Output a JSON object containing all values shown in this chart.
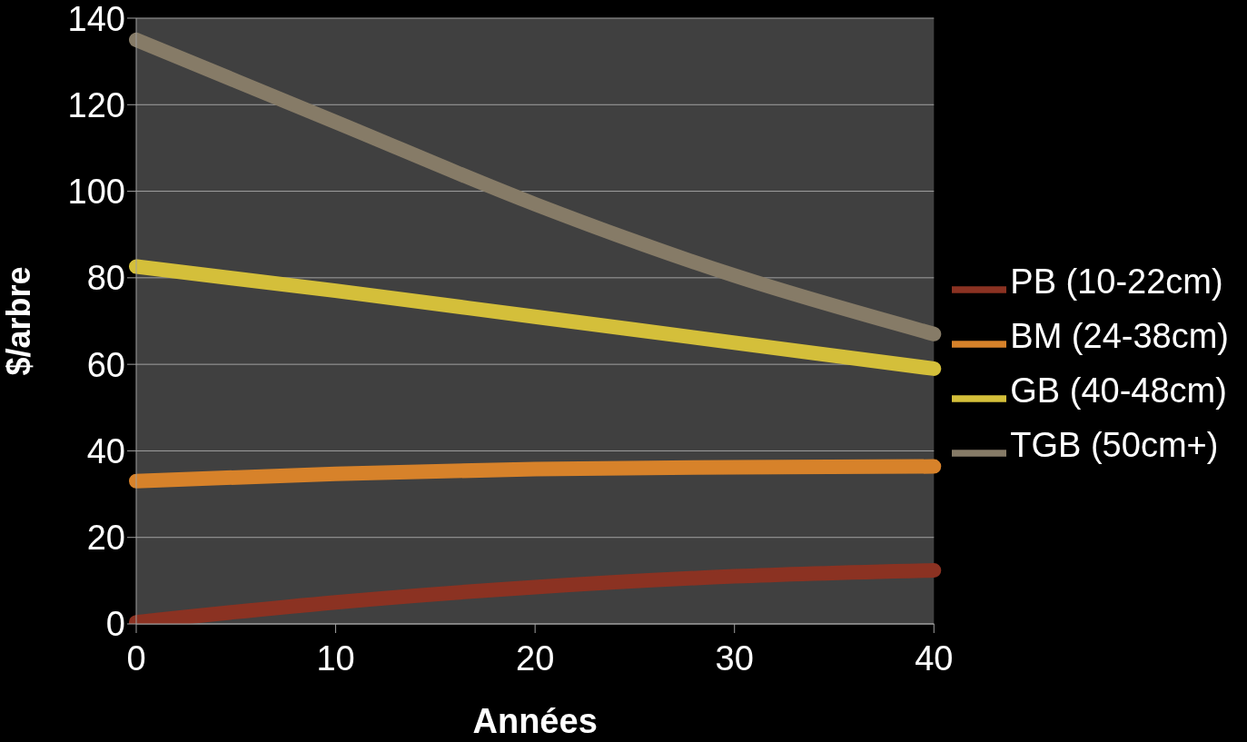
{
  "chart_data": {
    "type": "line",
    "xlabel": "Années",
    "ylabel": "$/arbre",
    "categories": [
      "0",
      "10",
      "20",
      "30",
      "40"
    ],
    "series": [
      {
        "name": "PB (10-22cm)",
        "color": "#8b3222",
        "values": [
          0.4,
          5,
          8.5,
          11,
          12.4
        ]
      },
      {
        "name": "BM (24-38cm)",
        "color": "#d7822a",
        "values": [
          33,
          34.7,
          35.8,
          36.2,
          36.4
        ]
      },
      {
        "name": "GB (40-48cm)",
        "color": "#d4bf3a",
        "values": [
          82.6,
          77,
          71,
          65,
          59
        ]
      },
      {
        "name": "TGB (50cm+)",
        "color": "#867b67",
        "values": [
          135,
          116,
          97,
          80.5,
          67
        ]
      }
    ],
    "ylim": [
      0,
      140
    ],
    "yticks": [
      0,
      20,
      40,
      60,
      80,
      100,
      120,
      140
    ],
    "grid": "y",
    "legend": "right",
    "marker": "none",
    "line_style": "solid"
  }
}
